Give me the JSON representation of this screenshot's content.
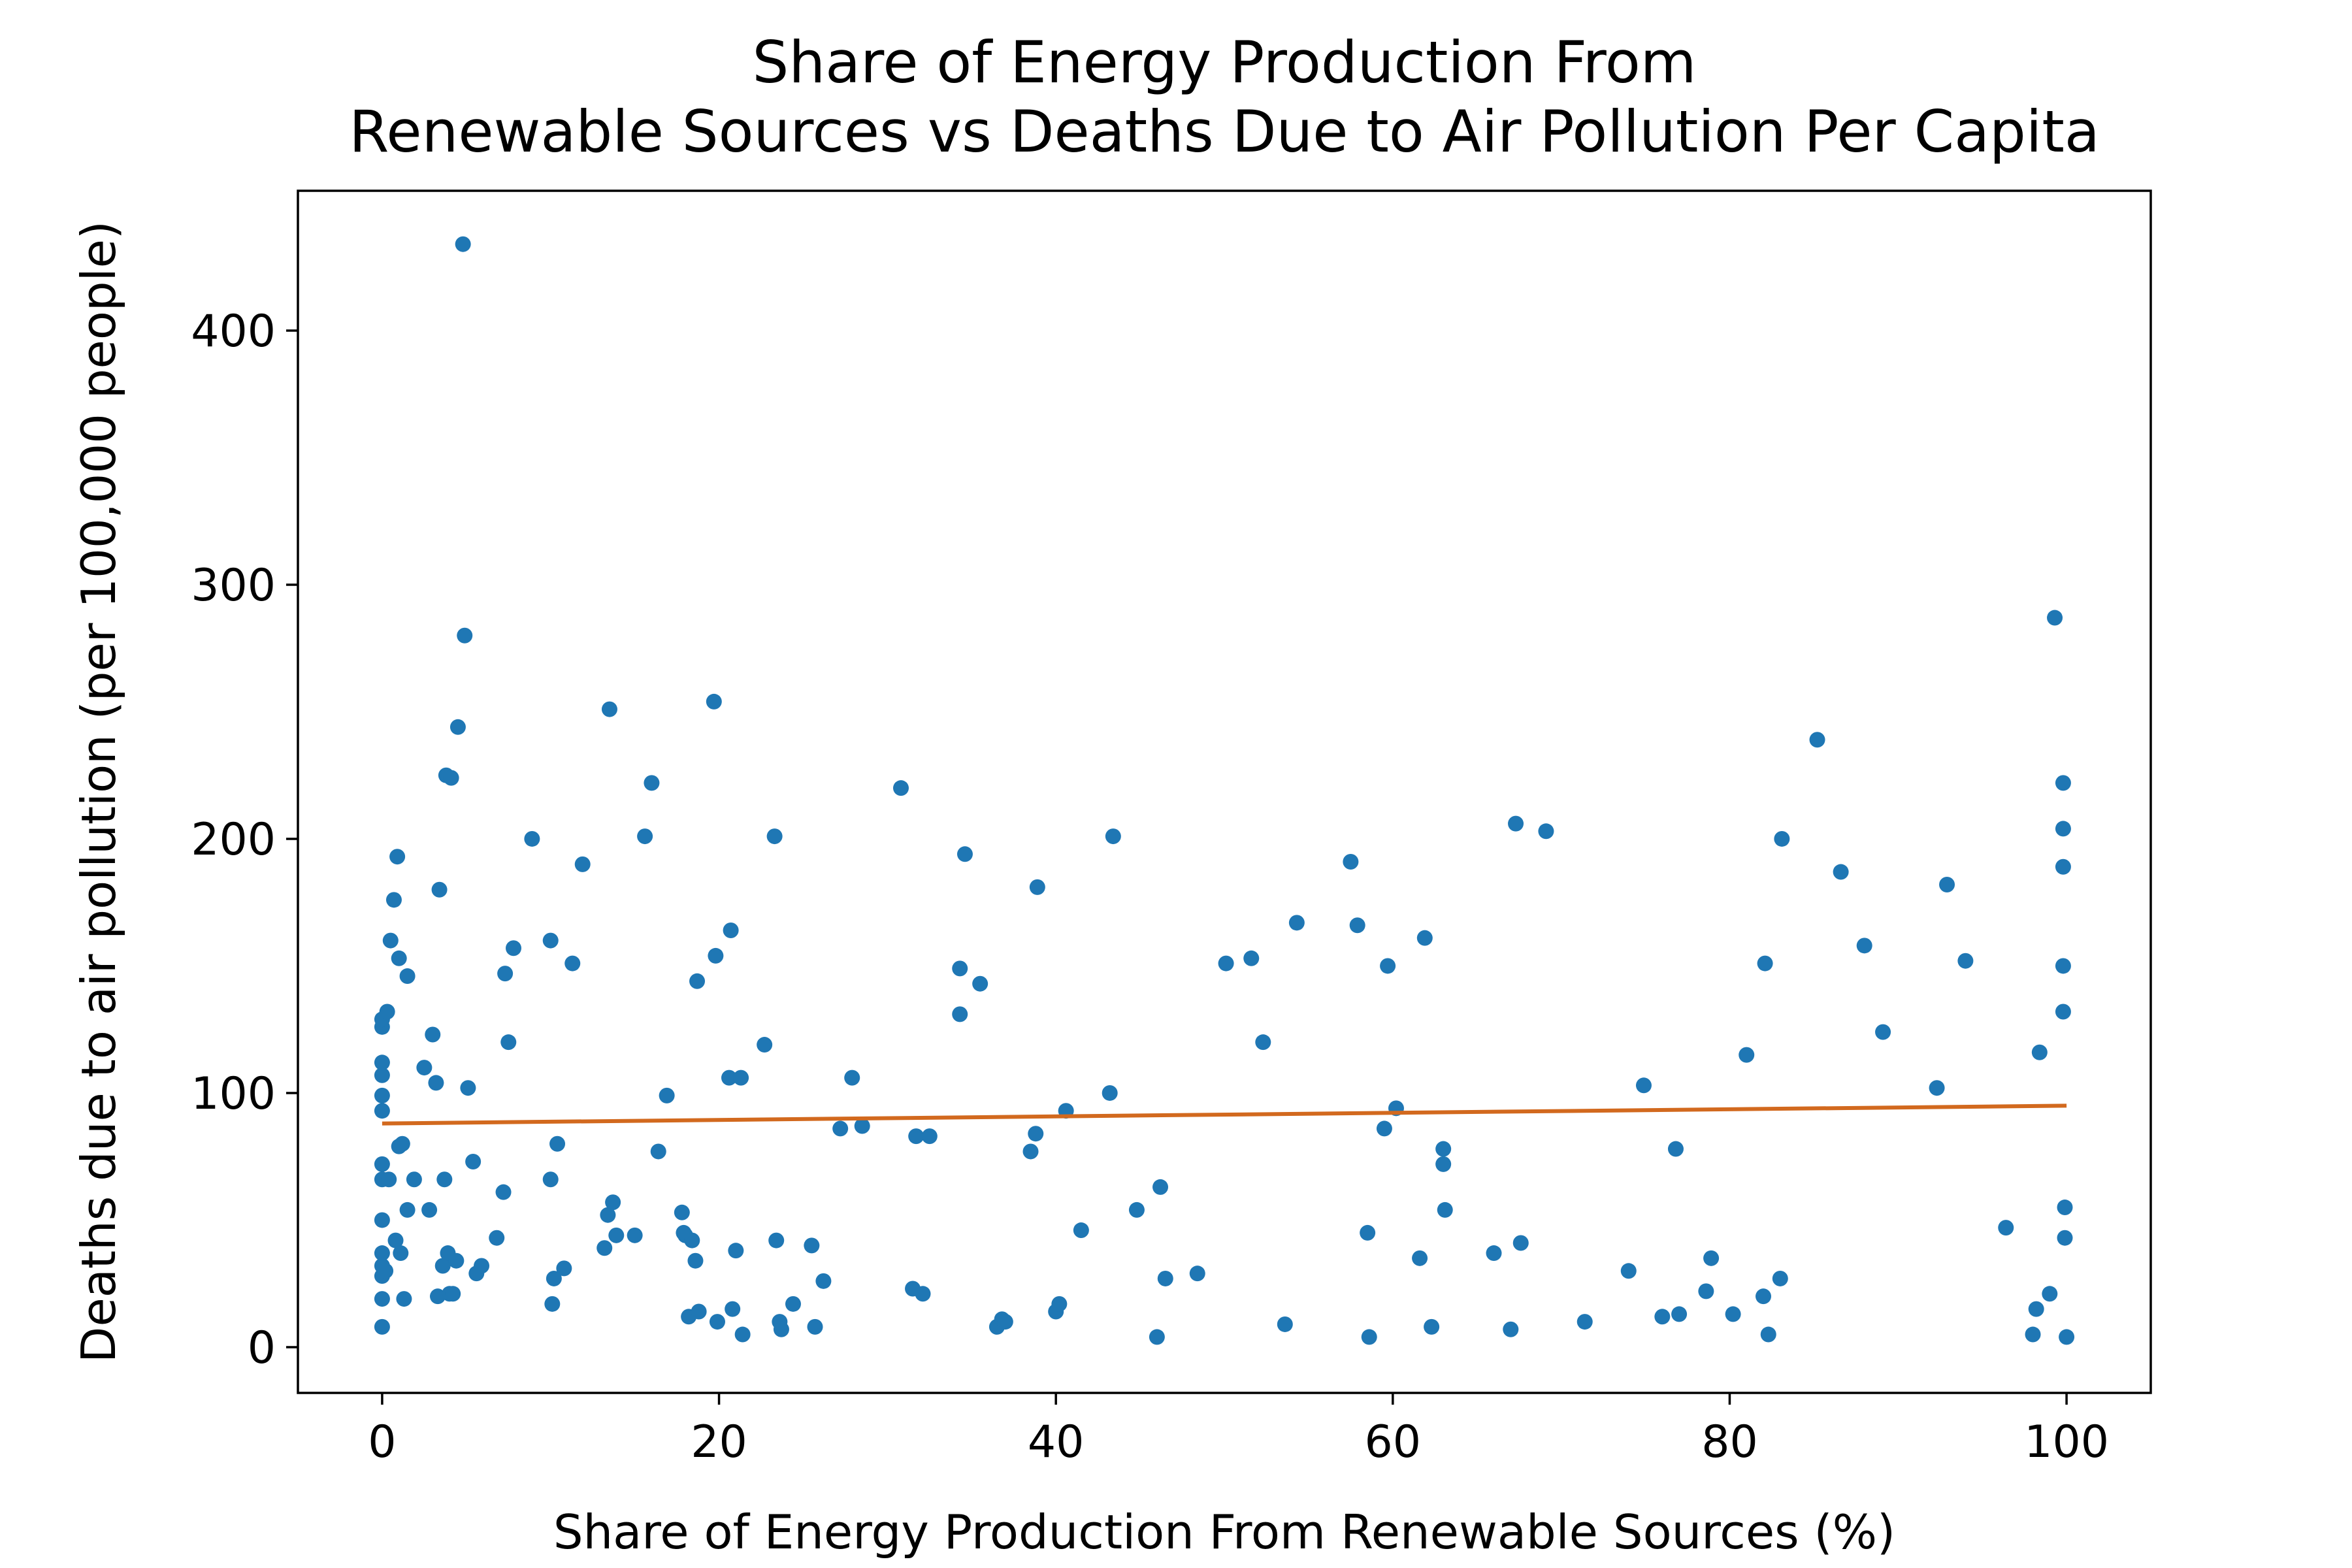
{
  "chart_data": {
    "type": "scatter",
    "title": [
      "Share of Energy Production From",
      "Renewable Sources vs Deaths Due to Air Pollution Per Capita"
    ],
    "xlabel": "Share of Energy Production From Renewable Sources (%)",
    "ylabel": "Deaths due to air pollution (per 100,000 people)",
    "xlim": [
      -5,
      105
    ],
    "ylim": [
      -18,
      455
    ],
    "xticks": [
      0,
      20,
      40,
      60,
      80,
      100
    ],
    "yticks": [
      0,
      100,
      200,
      300,
      400
    ],
    "grid": false,
    "legend": "none",
    "point_color": "#1f77b4",
    "trend_color": "#d2691e",
    "trendline": {
      "x": [
        0,
        100
      ],
      "y": [
        88,
        95
      ]
    },
    "points": [
      [
        0.0,
        8
      ],
      [
        0.0,
        19
      ],
      [
        0.0,
        28
      ],
      [
        0.0,
        32
      ],
      [
        0.0,
        37
      ],
      [
        0.0,
        50
      ],
      [
        0.0,
        66
      ],
      [
        0.0,
        72
      ],
      [
        0.0,
        93
      ],
      [
        0.0,
        99
      ],
      [
        0.0,
        107
      ],
      [
        0.0,
        112
      ],
      [
        0.0,
        126
      ],
      [
        0.0,
        129
      ],
      [
        0.2,
        30
      ],
      [
        0.3,
        132
      ],
      [
        0.4,
        66
      ],
      [
        0.5,
        160
      ],
      [
        0.7,
        176
      ],
      [
        0.8,
        42
      ],
      [
        0.9,
        193
      ],
      [
        1.0,
        153
      ],
      [
        1.0,
        79
      ],
      [
        1.1,
        37
      ],
      [
        1.2,
        80
      ],
      [
        1.3,
        19
      ],
      [
        1.5,
        146
      ],
      [
        1.5,
        54
      ],
      [
        1.9,
        66
      ],
      [
        2.5,
        110
      ],
      [
        2.8,
        54
      ],
      [
        3.0,
        123
      ],
      [
        3.2,
        104
      ],
      [
        3.3,
        20
      ],
      [
        3.4,
        180
      ],
      [
        3.6,
        32
      ],
      [
        3.7,
        66
      ],
      [
        3.8,
        225
      ],
      [
        3.9,
        37
      ],
      [
        4.0,
        21
      ],
      [
        4.1,
        224
      ],
      [
        4.2,
        21
      ],
      [
        4.4,
        34
      ],
      [
        4.5,
        244
      ],
      [
        4.8,
        434
      ],
      [
        4.9,
        280
      ],
      [
        5.1,
        102
      ],
      [
        5.4,
        73
      ],
      [
        5.6,
        29
      ],
      [
        5.9,
        32
      ],
      [
        6.8,
        43
      ],
      [
        7.2,
        61
      ],
      [
        7.3,
        147
      ],
      [
        7.5,
        120
      ],
      [
        7.8,
        157
      ],
      [
        8.9,
        200
      ],
      [
        10.0,
        160
      ],
      [
        10.0,
        66
      ],
      [
        10.1,
        17
      ],
      [
        10.2,
        27
      ],
      [
        10.4,
        80
      ],
      [
        10.8,
        31
      ],
      [
        11.3,
        151
      ],
      [
        11.9,
        190
      ],
      [
        13.2,
        39
      ],
      [
        13.4,
        52
      ],
      [
        13.5,
        251
      ],
      [
        13.7,
        57
      ],
      [
        13.9,
        44
      ],
      [
        15.0,
        44
      ],
      [
        15.6,
        201
      ],
      [
        16.0,
        222
      ],
      [
        16.4,
        77
      ],
      [
        16.9,
        99
      ],
      [
        17.8,
        53
      ],
      [
        17.9,
        45
      ],
      [
        18.0,
        44
      ],
      [
        18.2,
        12
      ],
      [
        18.4,
        42
      ],
      [
        18.6,
        34
      ],
      [
        18.7,
        144
      ],
      [
        18.8,
        14
      ],
      [
        19.7,
        254
      ],
      [
        19.8,
        154
      ],
      [
        19.9,
        10
      ],
      [
        20.6,
        106
      ],
      [
        20.7,
        164
      ],
      [
        20.8,
        15
      ],
      [
        21.0,
        38
      ],
      [
        21.3,
        106
      ],
      [
        21.4,
        5
      ],
      [
        22.7,
        119
      ],
      [
        23.3,
        201
      ],
      [
        23.4,
        42
      ],
      [
        23.6,
        10
      ],
      [
        23.7,
        7
      ],
      [
        24.4,
        17
      ],
      [
        25.5,
        40
      ],
      [
        25.7,
        8
      ],
      [
        26.2,
        26
      ],
      [
        27.2,
        86
      ],
      [
        27.9,
        106
      ],
      [
        28.5,
        87
      ],
      [
        30.8,
        220
      ],
      [
        31.5,
        23
      ],
      [
        31.7,
        83
      ],
      [
        32.1,
        21
      ],
      [
        32.5,
        83
      ],
      [
        34.3,
        149
      ],
      [
        34.3,
        131
      ],
      [
        34.6,
        194
      ],
      [
        35.5,
        143
      ],
      [
        36.5,
        8
      ],
      [
        36.8,
        11
      ],
      [
        37.0,
        10
      ],
      [
        38.5,
        77
      ],
      [
        38.8,
        84
      ],
      [
        38.9,
        181
      ],
      [
        40.0,
        14
      ],
      [
        40.2,
        17
      ],
      [
        40.6,
        93
      ],
      [
        41.5,
        46
      ],
      [
        43.2,
        100
      ],
      [
        43.4,
        201
      ],
      [
        44.8,
        54
      ],
      [
        46.0,
        4
      ],
      [
        46.2,
        63
      ],
      [
        46.5,
        27
      ],
      [
        48.4,
        29
      ],
      [
        50.1,
        151
      ],
      [
        51.6,
        153
      ],
      [
        52.3,
        120
      ],
      [
        53.6,
        9
      ],
      [
        54.3,
        167
      ],
      [
        57.5,
        191
      ],
      [
        57.9,
        166
      ],
      [
        58.5,
        45
      ],
      [
        58.6,
        4
      ],
      [
        59.5,
        86
      ],
      [
        59.7,
        150
      ],
      [
        60.2,
        94
      ],
      [
        61.6,
        35
      ],
      [
        61.9,
        161
      ],
      [
        62.3,
        8
      ],
      [
        63.0,
        78
      ],
      [
        63.0,
        72
      ],
      [
        63.1,
        54
      ],
      [
        66.0,
        37
      ],
      [
        67.0,
        7
      ],
      [
        67.3,
        206
      ],
      [
        67.6,
        41
      ],
      [
        69.1,
        203
      ],
      [
        71.4,
        10
      ],
      [
        74.0,
        30
      ],
      [
        74.9,
        103
      ],
      [
        76.0,
        12
      ],
      [
        76.8,
        78
      ],
      [
        77.0,
        13
      ],
      [
        78.6,
        22
      ],
      [
        78.9,
        35
      ],
      [
        80.2,
        13
      ],
      [
        81.0,
        115
      ],
      [
        82.0,
        20
      ],
      [
        82.1,
        151
      ],
      [
        82.3,
        5
      ],
      [
        83.0,
        27
      ],
      [
        83.1,
        200
      ],
      [
        85.2,
        239
      ],
      [
        86.6,
        187
      ],
      [
        88.0,
        158
      ],
      [
        89.1,
        124
      ],
      [
        92.3,
        102
      ],
      [
        92.9,
        182
      ],
      [
        94.0,
        152
      ],
      [
        96.4,
        47
      ],
      [
        98.0,
        5
      ],
      [
        98.2,
        15
      ],
      [
        98.4,
        116
      ],
      [
        99.0,
        21
      ],
      [
        99.3,
        287
      ],
      [
        99.8,
        222
      ],
      [
        99.8,
        204
      ],
      [
        99.8,
        189
      ],
      [
        99.8,
        150
      ],
      [
        99.8,
        132
      ],
      [
        99.9,
        55
      ],
      [
        99.9,
        43
      ],
      [
        100.0,
        4
      ]
    ]
  }
}
